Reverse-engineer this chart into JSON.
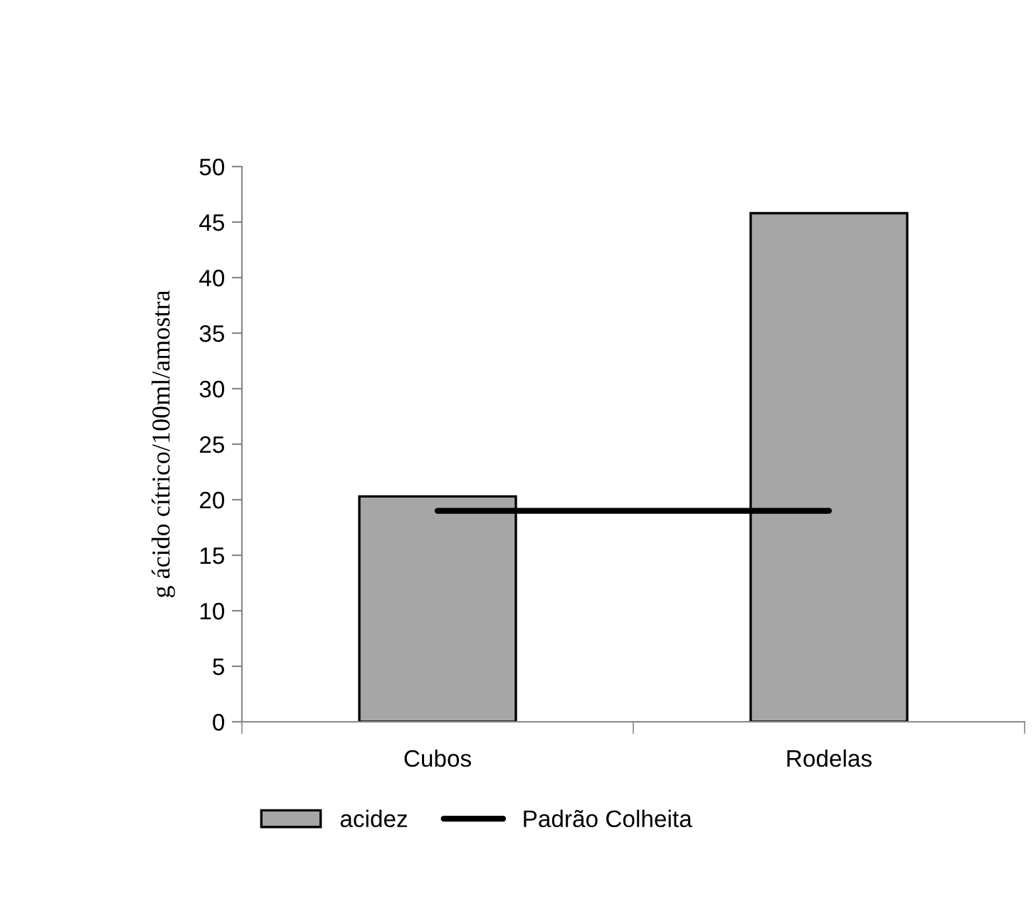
{
  "chart_data": {
    "type": "bar",
    "categories": [
      "Cubos",
      "Rodelas"
    ],
    "ylabel": "g ácido cítrico/100ml/amostra",
    "series": [
      {
        "name": "acidez",
        "color": "#a6a6a6",
        "values": [
          20.3,
          45.8
        ]
      },
      {
        "name": "Padrão Colheita",
        "type": "line",
        "color": "#000000",
        "values": [
          19.0,
          19.0
        ]
      }
    ],
    "ylim": [
      0,
      50
    ],
    "yticks": [
      0,
      5,
      10,
      15,
      20,
      25,
      30,
      35,
      40,
      45,
      50
    ],
    "grid": false,
    "legend": "bottom",
    "marker": "none"
  }
}
